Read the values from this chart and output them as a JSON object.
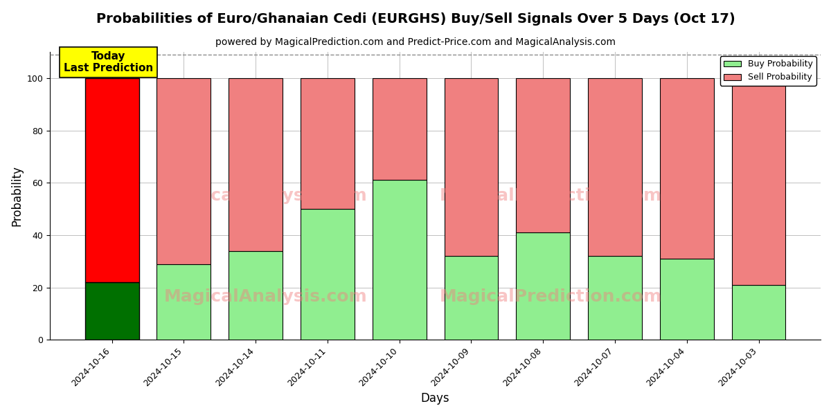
{
  "title": "Probabilities of Euro/Ghanaian Cedi (EURGHS) Buy/Sell Signals Over 5 Days (Oct 17)",
  "subtitle": "powered by MagicalPrediction.com and Predict-Price.com and MagicalAnalysis.com",
  "xlabel": "Days",
  "ylabel": "Probability",
  "categories": [
    "2024-10-16",
    "2024-10-15",
    "2024-10-14",
    "2024-10-11",
    "2024-10-10",
    "2024-10-09",
    "2024-10-08",
    "2024-10-07",
    "2024-10-04",
    "2024-10-03"
  ],
  "buy_values": [
    22,
    29,
    34,
    50,
    61,
    32,
    41,
    32,
    31,
    21
  ],
  "sell_values": [
    78,
    71,
    66,
    50,
    39,
    68,
    59,
    68,
    69,
    79
  ],
  "first_bar_buy_color": "#007000",
  "first_bar_sell_color": "#ff0000",
  "other_buy_color": "#90EE90",
  "other_sell_color": "#F08080",
  "bar_edge_color": "#000000",
  "ylim_max": 110,
  "dashed_line_y": 109,
  "watermark1": "MagicalAnalysis.com",
  "watermark2": "MagicalPrediction.com",
  "legend_buy_label": "Buy Probability",
  "legend_sell_label": "Sell Probability",
  "annotation_text": "Today\nLast Prediction",
  "annotation_bg": "#ffff00",
  "title_fontsize": 14,
  "subtitle_fontsize": 10,
  "axis_label_fontsize": 12,
  "tick_fontsize": 9,
  "yticks": [
    0,
    20,
    40,
    60,
    80,
    100
  ]
}
